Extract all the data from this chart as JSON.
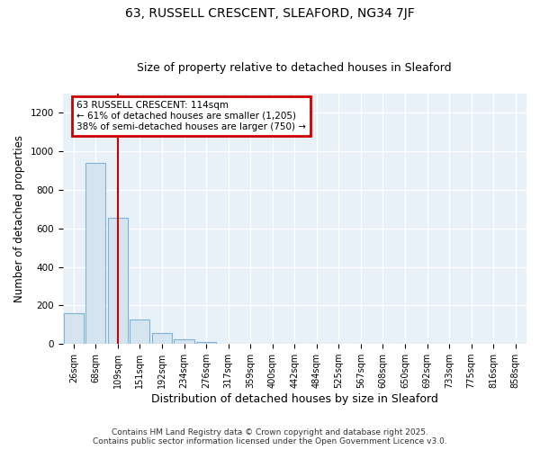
{
  "title": "63, RUSSELL CRESCENT, SLEAFORD, NG34 7JF",
  "subtitle": "Size of property relative to detached houses in Sleaford",
  "xlabel": "Distribution of detached houses by size in Sleaford",
  "ylabel": "Number of detached properties",
  "bar_color": "#d6e4f0",
  "bar_edge_color": "#7cb4d4",
  "bg_color": "#e8f0f8",
  "grid_color": "#ffffff",
  "fig_bg_color": "#ffffff",
  "bins": [
    "26sqm",
    "68sqm",
    "109sqm",
    "151sqm",
    "192sqm",
    "234sqm",
    "276sqm",
    "317sqm",
    "359sqm",
    "400sqm",
    "442sqm",
    "484sqm",
    "525sqm",
    "567sqm",
    "608sqm",
    "650sqm",
    "692sqm",
    "733sqm",
    "775sqm",
    "816sqm",
    "858sqm"
  ],
  "values": [
    160,
    940,
    655,
    125,
    57,
    25,
    10,
    0,
    0,
    0,
    3,
    0,
    0,
    0,
    0,
    0,
    0,
    0,
    0,
    0,
    0
  ],
  "ylim": [
    0,
    1300
  ],
  "yticks": [
    0,
    200,
    400,
    600,
    800,
    1000,
    1200
  ],
  "vline_bin_index": 2.0,
  "annotation_text": "63 RUSSELL CRESCENT: 114sqm\n← 61% of detached houses are smaller (1,205)\n38% of semi-detached houses are larger (750) →",
  "annotation_box_color": "#ffffff",
  "annotation_border_color": "#cc0000",
  "vline_color": "#cc0000",
  "footer_line1": "Contains HM Land Registry data © Crown copyright and database right 2025.",
  "footer_line2": "Contains public sector information licensed under the Open Government Licence v3.0.",
  "title_fontsize": 10,
  "subtitle_fontsize": 9,
  "axis_label_fontsize": 8.5,
  "tick_fontsize": 7,
  "annotation_fontsize": 7.5,
  "footer_fontsize": 6.5
}
